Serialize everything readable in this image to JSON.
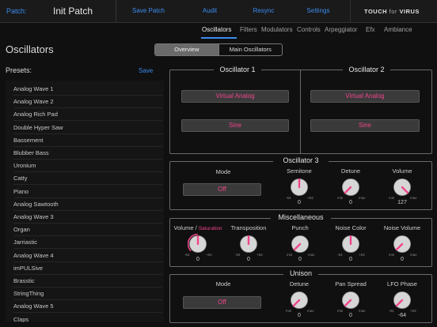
{
  "topbar": {
    "patch_label": "Patch:",
    "patch_name": "Init Patch",
    "buttons": [
      "Save Patch",
      "Audit",
      "Resync",
      "Settings"
    ],
    "brand_touch": "TOUCH",
    "brand_for": "for",
    "brand_virus": "VIRUS"
  },
  "tabs": [
    "Oscillators",
    "Filters",
    "Modulators",
    "Controls",
    "Arpeggiator",
    "Efx",
    "Ambiance"
  ],
  "active_tab": "Oscillators",
  "accent_color": "#3b8cf0",
  "highlight_color": "#f0458a",
  "section_title": "Oscillators",
  "segment": {
    "options": [
      "Overview",
      "Main Oscillators"
    ],
    "selected": "Overview"
  },
  "presets": {
    "label": "Presets:",
    "save_label": "Save",
    "items": [
      "Analog Wave 1",
      "Analog Wave 2",
      "Analog Rich Pad",
      "Double Hyper Saw",
      "Bassement",
      "Blubber Bass",
      "Uronium",
      "Catty",
      "Piano",
      "Analog Sawtooth",
      "Analog Wave 3",
      "Organ",
      "Jarriastic",
      "Analog Wave 4",
      "imPULSive",
      "Brasstic",
      "StringThing",
      "Analog Wave 5",
      "Claps"
    ]
  },
  "osc1": {
    "title": "Oscillator 1",
    "model": "Virtual Analog",
    "wave": "Sine"
  },
  "osc2": {
    "title": "Oscillator 2",
    "model": "Virtual Analog",
    "wave": "Sine"
  },
  "osc3": {
    "title": "Oscillator 3",
    "mode_label": "Mode",
    "mode_value": "Off",
    "knobs": [
      {
        "label": "Semitone",
        "value": "0",
        "min": "-64",
        "max": "+63",
        "level": 0.5
      },
      {
        "label": "Detune",
        "value": "0",
        "min": "min",
        "max": "max",
        "level": 0.0
      },
      {
        "label": "Volume",
        "value": "127",
        "min": "min",
        "max": "max",
        "level": 1.0
      }
    ]
  },
  "misc": {
    "title": "Miscellaneous",
    "knobs": [
      {
        "label": "Volume / ",
        "label_extra": "Saturation",
        "value": "0",
        "min": "-64",
        "max": "+63",
        "level": 0.5,
        "arc": true
      },
      {
        "label": "Transposition",
        "value": "0",
        "min": "-64",
        "max": "+63",
        "level": 0.5
      },
      {
        "label": "Punch",
        "value": "0",
        "min": "min",
        "max": "max",
        "level": 0.0
      },
      {
        "label": "Noise Color",
        "value": "0",
        "min": "-64",
        "max": "+63",
        "level": 0.5
      },
      {
        "label": "Noise Volume",
        "value": "0",
        "min": "min",
        "max": "max",
        "level": 0.0
      }
    ]
  },
  "unison": {
    "title": "Unison",
    "mode_label": "Mode",
    "mode_value": "Off",
    "knobs": [
      {
        "label": "Detune",
        "value": "0",
        "min": "min",
        "max": "max",
        "level": 0.0
      },
      {
        "label": "Pan Spread",
        "value": "0",
        "min": "min",
        "max": "max",
        "level": 0.0
      },
      {
        "label": "LFO Phase",
        "value": "-64",
        "min": "-64",
        "max": "+63",
        "level": 0.0
      }
    ]
  }
}
